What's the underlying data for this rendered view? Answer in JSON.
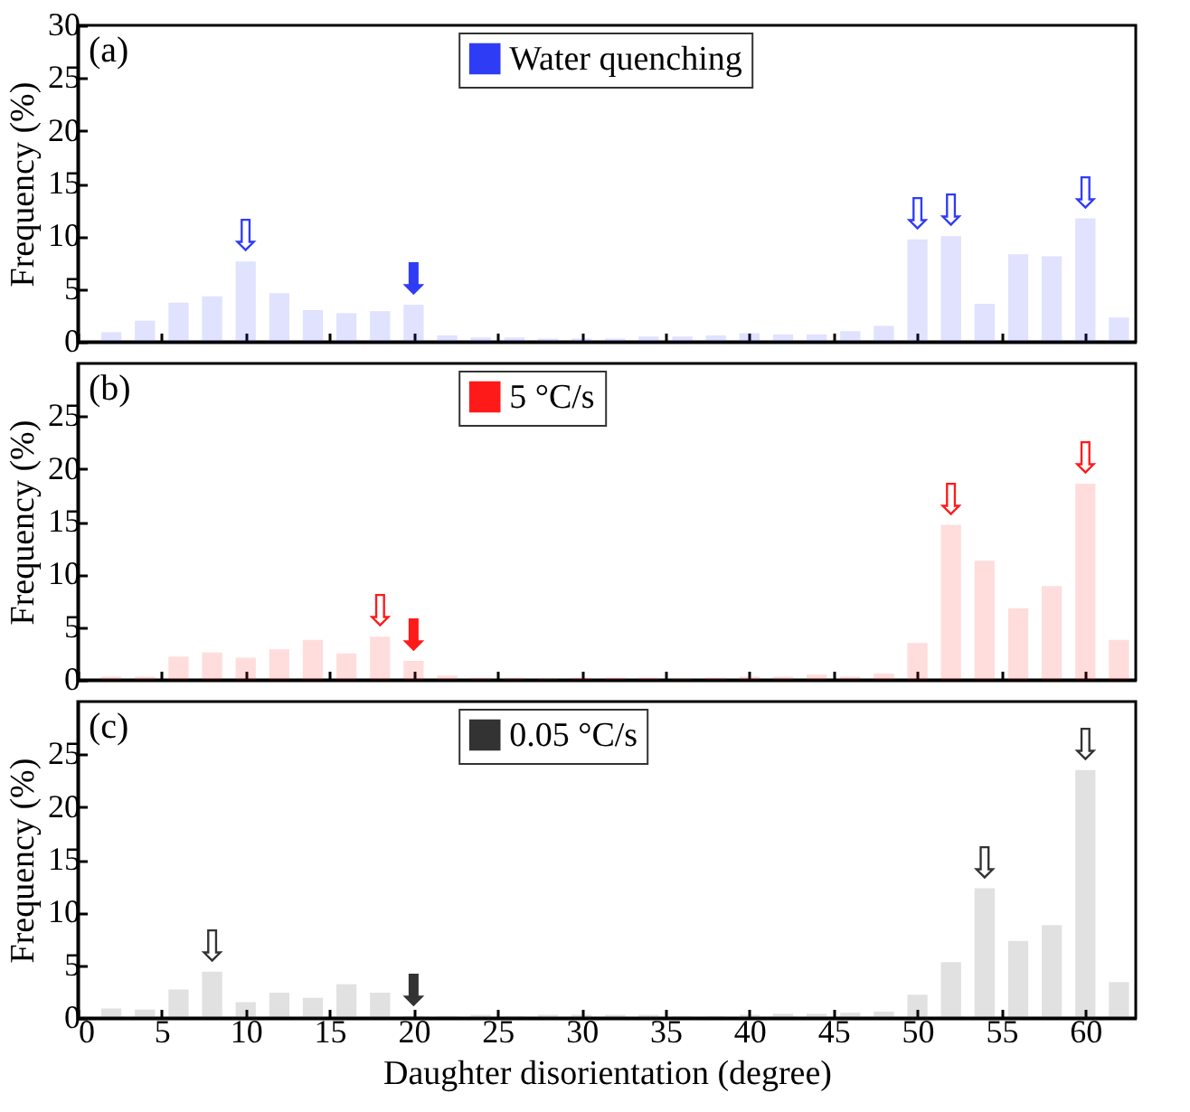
{
  "chart_data": [
    {
      "type": "bar",
      "x": [
        2,
        4,
        6,
        8,
        10,
        12,
        14,
        16,
        18,
        20,
        22,
        24,
        26,
        28,
        30,
        32,
        34,
        36,
        38,
        40,
        42,
        44,
        46,
        48,
        50,
        52,
        54,
        56,
        58,
        60,
        62
      ],
      "series": [
        {
          "name": "Water quenching",
          "color": "#2f3cf5",
          "values": [
            0.9,
            2.0,
            3.7,
            4.3,
            7.6,
            4.6,
            3.0,
            2.7,
            2.9,
            3.5,
            0.6,
            0.4,
            0.4,
            0.3,
            0.3,
            0.3,
            0.5,
            0.5,
            0.6,
            0.8,
            0.7,
            0.7,
            1.0,
            1.5,
            9.7,
            10.0,
            3.6,
            8.3,
            8.1,
            11.7,
            2.3
          ]
        }
      ],
      "ylabel": "Frequency (%)",
      "xlim": [
        0,
        63
      ],
      "xticks": [
        0,
        5,
        10,
        15,
        20,
        25,
        30,
        35,
        40,
        45,
        50,
        55,
        60
      ],
      "ylim": [
        0,
        30
      ],
      "yticks": [
        0,
        5,
        10,
        15,
        20,
        25,
        30
      ],
      "tick_labels": "y",
      "legend": "top",
      "grid": false,
      "annotations": [
        "(a)",
        {
          "text": "⇩",
          "x": 10,
          "y": 7.6
        },
        {
          "text": "⬇",
          "x": 20,
          "y": 3.5
        },
        {
          "text": "⇩",
          "x": 50,
          "y": 9.7
        },
        {
          "text": "⇩",
          "x": 52,
          "y": 10.0
        },
        {
          "text": "⇩",
          "x": 60,
          "y": 11.7
        }
      ]
    },
    {
      "type": "bar",
      "x": [
        2,
        4,
        6,
        8,
        10,
        12,
        14,
        16,
        18,
        20,
        22,
        24,
        26,
        28,
        30,
        32,
        34,
        36,
        38,
        40,
        42,
        44,
        46,
        48,
        50,
        52,
        54,
        56,
        58,
        60,
        62
      ],
      "series": [
        {
          "name": "5 °C/s",
          "color": "#ff1a1a",
          "values": [
            0.3,
            0.3,
            2.2,
            2.6,
            2.1,
            2.9,
            3.8,
            2.5,
            4.1,
            1.8,
            0.4,
            0.2,
            0.2,
            0.1,
            0.2,
            0.2,
            0.2,
            0.1,
            0.2,
            0.3,
            0.3,
            0.5,
            0.3,
            0.6,
            3.5,
            14.7,
            11.3,
            6.8,
            8.9,
            18.6,
            3.8
          ]
        }
      ],
      "ylabel": "Frequency (%)",
      "xlim": [
        0,
        63
      ],
      "xticks": [
        0,
        5,
        10,
        15,
        20,
        25,
        30,
        35,
        40,
        45,
        50,
        55,
        60
      ],
      "ylim": [
        0,
        30
      ],
      "yticks": [
        0,
        5,
        10,
        15,
        20,
        25
      ],
      "tick_labels": "y",
      "legend": "top",
      "grid": false,
      "annotations": [
        "(b)",
        {
          "text": "⇩",
          "x": 18,
          "y": 4.1
        },
        {
          "text": "⬇",
          "x": 20,
          "y": 1.8
        },
        {
          "text": "⇩",
          "x": 52,
          "y": 14.7
        },
        {
          "text": "⇩",
          "x": 60,
          "y": 18.6
        }
      ]
    },
    {
      "type": "bar",
      "x": [
        2,
        4,
        6,
        8,
        10,
        12,
        14,
        16,
        18,
        20,
        22,
        24,
        26,
        28,
        30,
        32,
        34,
        36,
        38,
        40,
        42,
        44,
        46,
        48,
        50,
        52,
        54,
        56,
        58,
        60,
        62
      ],
      "series": [
        {
          "name": "0.05 °C/s",
          "color": "#333333",
          "values": [
            0.9,
            0.8,
            2.7,
            4.4,
            1.5,
            2.4,
            1.9,
            3.2,
            2.4,
            0.2,
            0.2,
            0.3,
            0.2,
            0.3,
            0.3,
            0.3,
            0.3,
            0.2,
            0.2,
            0.3,
            0.4,
            0.4,
            0.5,
            0.6,
            2.2,
            5.3,
            12.3,
            7.3,
            8.8,
            23.5,
            3.4
          ]
        }
      ],
      "xlabel": "Daughter disorientation (degree)",
      "ylabel": "Frequency (%)",
      "xlim": [
        0,
        63
      ],
      "xticks": [
        0,
        5,
        10,
        15,
        20,
        25,
        30,
        35,
        40,
        45,
        50,
        55,
        60
      ],
      "ylim": [
        0,
        30
      ],
      "yticks": [
        0,
        5,
        10,
        15,
        20,
        25
      ],
      "legend": "top",
      "grid": false,
      "annotations": [
        "(c)",
        {
          "text": "⇩",
          "x": 8,
          "y": 4.4
        },
        {
          "text": "⬇",
          "x": 20,
          "y": 0.2
        },
        {
          "text": "⇩",
          "x": 54,
          "y": 12.3
        },
        {
          "text": "⇩",
          "x": 60,
          "y": 23.5
        }
      ]
    }
  ]
}
